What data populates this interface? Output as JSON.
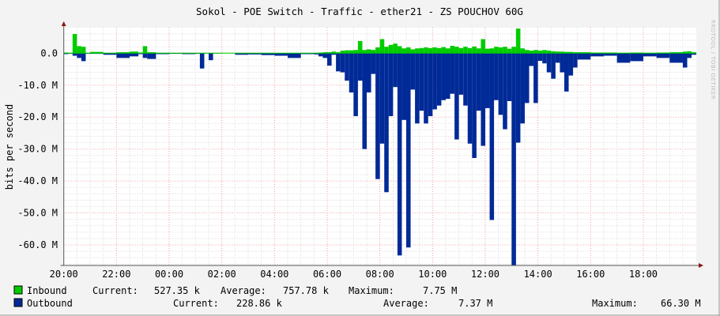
{
  "chart_data": {
    "type": "area",
    "title": "Sokol - POE Switch - Traffic - ether21 - ZS POUCHOV 60G",
    "ylabel": "bits per second",
    "xlabel": "",
    "ylim": [
      -66.5,
      8.2
    ],
    "y_unit": "M",
    "y_ticks": [
      {
        "value": 0,
        "label": "0.0"
      },
      {
        "value": -10,
        "label": "-10.0 M"
      },
      {
        "value": -20,
        "label": "-20.0 M"
      },
      {
        "value": -30,
        "label": "-30.0 M"
      },
      {
        "value": -40,
        "label": "-40.0 M"
      },
      {
        "value": -50,
        "label": "-50.0 M"
      },
      {
        "value": -60,
        "label": "-60.0 M"
      }
    ],
    "x_ticks": [
      "20:00",
      "22:00",
      "00:00",
      "02:00",
      "04:00",
      "06:00",
      "08:00",
      "10:00",
      "12:00",
      "14:00",
      "16:00",
      "18:00"
    ],
    "xlim": [
      "20:00",
      "20:00"
    ],
    "grid": true,
    "colors": {
      "inbound": "#00cc00",
      "outbound": "#002a97",
      "major_grid": "#f0a0a0",
      "minor_grid": "#d8d8d8"
    },
    "x": [
      "20:00",
      "20:10",
      "20:20",
      "20:30",
      "20:40",
      "20:50",
      "21:00",
      "21:30",
      "22:00",
      "22:30",
      "22:50",
      "23:00",
      "23:10",
      "23:30",
      "00:00",
      "00:30",
      "01:00",
      "01:10",
      "01:20",
      "01:30",
      "01:40",
      "02:00",
      "02:30",
      "03:00",
      "03:30",
      "04:00",
      "04:30",
      "05:00",
      "05:30",
      "05:40",
      "05:50",
      "06:00",
      "06:10",
      "06:20",
      "06:30",
      "06:40",
      "06:50",
      "07:00",
      "07:10",
      "07:20",
      "07:30",
      "07:40",
      "07:50",
      "08:00",
      "08:10",
      "08:20",
      "08:30",
      "08:40",
      "08:50",
      "09:00",
      "09:10",
      "09:20",
      "09:30",
      "09:40",
      "09:50",
      "10:00",
      "10:10",
      "10:20",
      "10:30",
      "10:40",
      "10:50",
      "11:00",
      "11:10",
      "11:20",
      "11:30",
      "11:40",
      "11:50",
      "12:00",
      "12:10",
      "12:20",
      "12:30",
      "12:40",
      "12:50",
      "13:00",
      "13:10",
      "13:20",
      "13:30",
      "13:40",
      "13:50",
      "14:00",
      "14:10",
      "14:20",
      "14:30",
      "14:40",
      "14:50",
      "15:00",
      "15:10",
      "15:20",
      "15:30",
      "16:00",
      "16:30",
      "17:00",
      "17:30",
      "18:00",
      "18:30",
      "19:00",
      "19:30",
      "19:40",
      "19:50"
    ],
    "series": [
      {
        "name": "Inbound",
        "values": [
          0.2,
          0.1,
          6.0,
          2.2,
          2.0,
          0.1,
          0.4,
          0.1,
          0.3,
          0.5,
          0.2,
          2.2,
          0.3,
          0.1,
          0,
          0,
          0,
          0,
          0,
          0,
          0,
          0,
          0,
          0,
          0,
          0,
          0,
          0,
          0.1,
          0.2,
          0.3,
          0.3,
          0.5,
          0.3,
          0.8,
          0.9,
          0.9,
          1.0,
          3.8,
          1.0,
          1.2,
          1.0,
          1.8,
          4.4,
          2.0,
          2.6,
          3.0,
          2.2,
          1.5,
          1.8,
          1.2,
          1.5,
          1.6,
          1.8,
          1.6,
          1.8,
          1.6,
          1.9,
          1.5,
          2.3,
          2.0,
          1.6,
          2.0,
          1.6,
          2.1,
          1.5,
          4.4,
          1.4,
          1.5,
          2.0,
          1.8,
          2.0,
          1.4,
          2.0,
          7.7,
          1.5,
          1.0,
          0.8,
          1.0,
          0.8,
          1.0,
          0.8,
          0.6,
          0.5,
          0.5,
          0.4,
          0.4,
          0.3,
          0.3,
          0.2,
          0.2,
          0.1,
          0.2,
          0.1,
          0.2,
          0.3,
          0.5,
          0.6,
          0.3
        ]
      },
      {
        "name": "Outbound",
        "values": [
          -0.3,
          -0.2,
          -0.8,
          -1.5,
          -2.5,
          -0.2,
          -0.2,
          -0.5,
          -1.5,
          -1.0,
          -0.3,
          -1.5,
          -1.8,
          -0.3,
          -0.2,
          -0.3,
          -0.2,
          -4.8,
          -0.1,
          -2.2,
          -0.1,
          0,
          -0.5,
          -0.4,
          -0.6,
          -0.8,
          -1.5,
          -0.3,
          -0.4,
          -1.0,
          -1.5,
          -3.9,
          -0.5,
          -5.7,
          -6.0,
          -8.6,
          -12.3,
          -19.7,
          -8.6,
          -30.0,
          -12.3,
          -6.5,
          -39.4,
          -28.3,
          -43.5,
          -19.7,
          -10.6,
          -63.3,
          -20.9,
          -60.8,
          -11.4,
          -22.0,
          -18.0,
          -22.0,
          -19.7,
          -17.6,
          -16.4,
          -14.7,
          -14.3,
          -12.7,
          -27.0,
          -13.0,
          -16.4,
          -28.3,
          -32.8,
          -18.0,
          -29.0,
          -17.2,
          -52.2,
          -14.7,
          -19.3,
          -23.8,
          -15.0,
          -66.3,
          -28.0,
          -22.0,
          -15.6,
          -4.0,
          -15.6,
          -2.4,
          -3.2,
          -6.0,
          -8.0,
          -3.0,
          -6.0,
          -12.0,
          -7.0,
          -4.5,
          -2.0,
          -1.0,
          -0.8,
          -3.0,
          -2.5,
          -1.0,
          -1.5,
          -3.0,
          -4.5,
          -1.5,
          -0.5
        ]
      }
    ]
  },
  "legend": [
    {
      "name": "Inbound",
      "current_label": "Current:",
      "current": "527.35 k",
      "average_label": "Average:",
      "average": "757.78 k",
      "maximum_label": "Maximum:",
      "maximum": "7.75 M"
    },
    {
      "name": "Outbound",
      "current_label": "Current:",
      "current": "228.86 k",
      "average_label": "Average:",
      "average": "7.37 M",
      "maximum_label": "Maximum:",
      "maximum": "66.30 M"
    }
  ],
  "watermark": "RRDTOOL / TOBI OETIKER"
}
